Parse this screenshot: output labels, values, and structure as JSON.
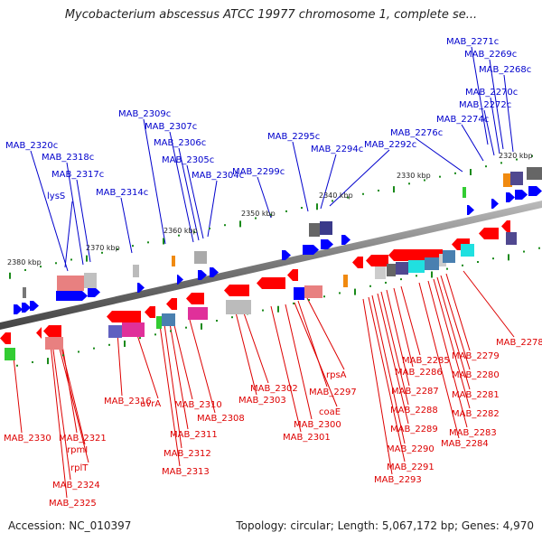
{
  "title": "Mycobacterium abscessus ATCC 19977 chromosome 1, complete se...",
  "footer": {
    "accession": "Accession: NC_010397",
    "summary": "Topology: circular; Length: 5,067,172 bp; Genes: 4,970"
  },
  "colors": {
    "forward_label": "#0000cc",
    "reverse_label": "#dd0000",
    "forward_gene": "#0000ff",
    "reverse_gene": "#ff0000",
    "backbone": "#808080",
    "tick": "#1a8a1a"
  },
  "ticks": [
    "2320 kbp",
    "2330 kbp",
    "2340 kbp",
    "2350 kbp",
    "2360 kbp",
    "2370 kbp",
    "2380 kbp"
  ],
  "forward_labels": [
    "MAB_2271c",
    "MAB_2269c",
    "MAB_2268c",
    "MAB_2270c",
    "MAB_2272c",
    "MAB_2274c",
    "MAB_2276c",
    "MAB_2292c",
    "MAB_2294c",
    "MAB_2295c",
    "MAB_2299c",
    "MAB_2304c",
    "MAB_2305c",
    "MAB_2306c",
    "MAB_2307c",
    "MAB_2309c",
    "MAB_2314c",
    "MAB_2317c",
    "MAB_2318c",
    "MAB_2320c",
    "lysS"
  ],
  "reverse_labels": [
    "MAB_2278",
    "MAB_2279",
    "MAB_2280",
    "MAB_2281",
    "MAB_2282",
    "MAB_2283",
    "MAB_2284",
    "MAB_2285",
    "MAB_2286",
    "MAB_2287",
    "MAB_2288",
    "MAB_2289",
    "MAB_2290",
    "MAB_2291",
    "MAB_2293",
    "rpsA",
    "MAB_2297",
    "coaE",
    "MAB_2300",
    "MAB_2301",
    "MAB_2302",
    "MAB_2303",
    "MAB_2308",
    "MAB_2310",
    "MAB_2311",
    "MAB_2312",
    "MAB_2313",
    "uvrA",
    "MAB_2316",
    "MAB_2321",
    "rpmI",
    "rplT",
    "MAB_2324",
    "MAB_2325",
    "MAB_2330"
  ]
}
